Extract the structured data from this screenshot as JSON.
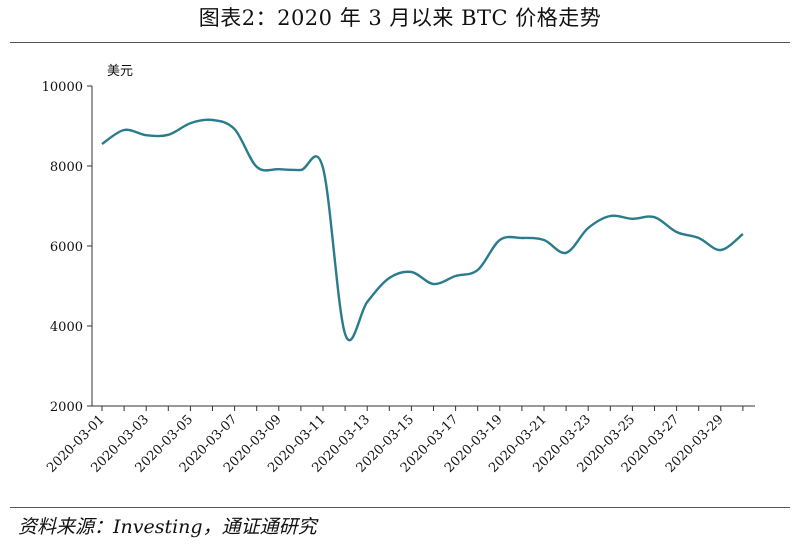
{
  "title": "图表2：2020 年 3 月以来 BTC 价格走势",
  "source": "资料来源：Investing，通证通研究",
  "colors": {
    "line": "#2a7b8c",
    "axis": "#333333"
  },
  "chart_data": {
    "type": "line",
    "title": "图表2：2020 年 3 月以来 BTC 价格走势",
    "ylabel": "美元",
    "xlabel": "",
    "ylim": [
      2000,
      10000
    ],
    "yticks": [
      2000,
      4000,
      6000,
      8000,
      10000
    ],
    "xticks": [
      "2020-03-01",
      "2020-03-03",
      "2020-03-05",
      "2020-03-07",
      "2020-03-09",
      "2020-03-11",
      "2020-03-13",
      "2020-03-15",
      "2020-03-17",
      "2020-03-19",
      "2020-03-21",
      "2020-03-23",
      "2020-03-25",
      "2020-03-27",
      "2020-03-29"
    ],
    "grid": false,
    "legend": "none",
    "series": [
      {
        "name": "BTC",
        "x": [
          "2020-03-01",
          "2020-03-02",
          "2020-03-03",
          "2020-03-04",
          "2020-03-05",
          "2020-03-06",
          "2020-03-07",
          "2020-03-08",
          "2020-03-09",
          "2020-03-10",
          "2020-03-11",
          "2020-03-12",
          "2020-03-13",
          "2020-03-14",
          "2020-03-15",
          "2020-03-16",
          "2020-03-17",
          "2020-03-18",
          "2020-03-19",
          "2020-03-20",
          "2020-03-21",
          "2020-03-22",
          "2020-03-23",
          "2020-03-24",
          "2020-03-25",
          "2020-03-26",
          "2020-03-27",
          "2020-03-28",
          "2020-03-29",
          "2020-03-30"
        ],
        "values": [
          8550,
          8900,
          8770,
          8780,
          9070,
          9150,
          8920,
          7980,
          7920,
          7900,
          7950,
          3800,
          4600,
          5200,
          5350,
          5050,
          5250,
          5400,
          6150,
          6200,
          6150,
          5830,
          6450,
          6750,
          6680,
          6720,
          6350,
          6200,
          5900,
          6300
        ]
      }
    ]
  }
}
